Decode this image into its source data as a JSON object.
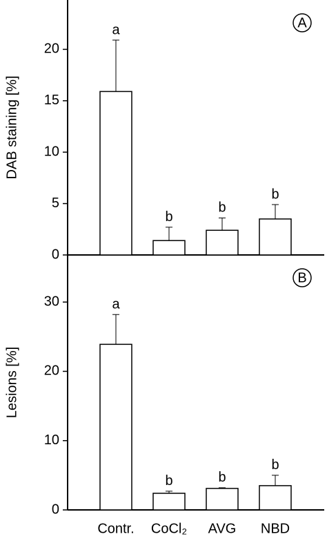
{
  "chart_data": [
    {
      "type": "bar",
      "panel_label": "A",
      "y_label": "DAB staining [%]",
      "values": [
        15.9,
        1.4,
        2.4,
        3.5
      ],
      "errors": [
        5.0,
        1.3,
        1.2,
        1.4
      ],
      "letters": [
        "a",
        "b",
        "b",
        "b"
      ],
      "color": "#ffffff",
      "ylim": [
        0,
        24.8
      ],
      "yticks": [
        0,
        5,
        10,
        15,
        20
      ]
    },
    {
      "type": "bar",
      "panel_label": "B",
      "y_label": "Lesions [%]",
      "categories": [
        "Contr.",
        "CoCl₂",
        "AVG",
        "NBD"
      ],
      "values": [
        23.9,
        2.4,
        3.1,
        3.5
      ],
      "errors": [
        4.3,
        0.3,
        0.1,
        1.5
      ],
      "letters": [
        "a",
        "b",
        "b",
        "b"
      ],
      "color": "#ffffff",
      "ylim": [
        0,
        36.8
      ],
      "yticks": [
        0,
        10,
        20,
        30
      ]
    }
  ]
}
